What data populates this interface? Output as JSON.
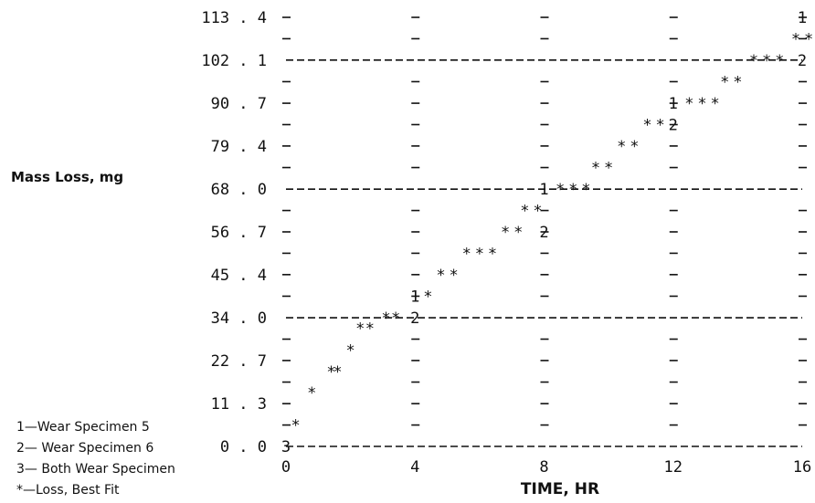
{
  "chart_data": {
    "type": "line",
    "title": "",
    "xlabel": "TIME, HR",
    "ylabel": "Mass Loss, mg",
    "xlim": [
      0,
      16
    ],
    "ylim": [
      0,
      113.4
    ],
    "x_ticks": [
      "0",
      "4",
      "8",
      "12",
      "16"
    ],
    "y_ticks": [
      "0 . 0",
      "11 . 3",
      "22 . 7",
      "34 . 0",
      "45 . 4",
      "56 . 7",
      "68 . 0",
      "79 . 4",
      "90 . 7",
      "102 . 1",
      "113 . 4"
    ],
    "y_tick_values": [
      0,
      11.3,
      22.7,
      34.0,
      45.4,
      56.7,
      68.0,
      79.4,
      90.7,
      102.1,
      113.4
    ],
    "legend": [
      "1—Wear Specimen 5",
      "2— Wear Specimen 6",
      "3— Both Wear Specimen",
      "*—Loss, Best Fit"
    ],
    "series": [
      {
        "label": "1",
        "points": [
          [
            4,
            39.7
          ],
          [
            8,
            68.0
          ],
          [
            12,
            90.7
          ],
          [
            16,
            113.4
          ]
        ]
      },
      {
        "label": "2",
        "points": [
          [
            4,
            34.0
          ],
          [
            8,
            56.7
          ],
          [
            12,
            85.1
          ],
          [
            16,
            102.1
          ]
        ]
      },
      {
        "label": "3",
        "points": [
          [
            0,
            0.0
          ]
        ]
      },
      {
        "label": "*",
        "points": [
          [
            0.3,
            5.7
          ],
          [
            0.8,
            14.2
          ],
          [
            1.4,
            19.8
          ],
          [
            1.6,
            19.8
          ],
          [
            2.0,
            25.5
          ],
          [
            2.3,
            31.2
          ],
          [
            2.6,
            31.2
          ],
          [
            3.1,
            34.0
          ],
          [
            3.4,
            34.0
          ],
          [
            4.4,
            39.7
          ],
          [
            4.8,
            45.4
          ],
          [
            5.2,
            45.4
          ],
          [
            5.6,
            51.0
          ],
          [
            6.0,
            51.0
          ],
          [
            6.4,
            51.0
          ],
          [
            6.8,
            56.7
          ],
          [
            7.2,
            56.7
          ],
          [
            7.4,
            62.4
          ],
          [
            7.8,
            62.4
          ],
          [
            8.5,
            68.0
          ],
          [
            8.9,
            68.0
          ],
          [
            9.3,
            68.0
          ],
          [
            9.6,
            73.7
          ],
          [
            10.0,
            73.7
          ],
          [
            10.4,
            79.4
          ],
          [
            10.8,
            79.4
          ],
          [
            11.2,
            85.1
          ],
          [
            11.6,
            85.1
          ],
          [
            12.5,
            90.7
          ],
          [
            12.9,
            90.7
          ],
          [
            13.3,
            90.7
          ],
          [
            13.6,
            96.4
          ],
          [
            14.0,
            96.4
          ],
          [
            14.5,
            102.1
          ],
          [
            14.9,
            102.1
          ],
          [
            15.3,
            102.1
          ],
          [
            15.8,
            107.7
          ],
          [
            16.2,
            107.7
          ]
        ]
      }
    ],
    "grid": true,
    "legend_position": "bottom-left"
  }
}
